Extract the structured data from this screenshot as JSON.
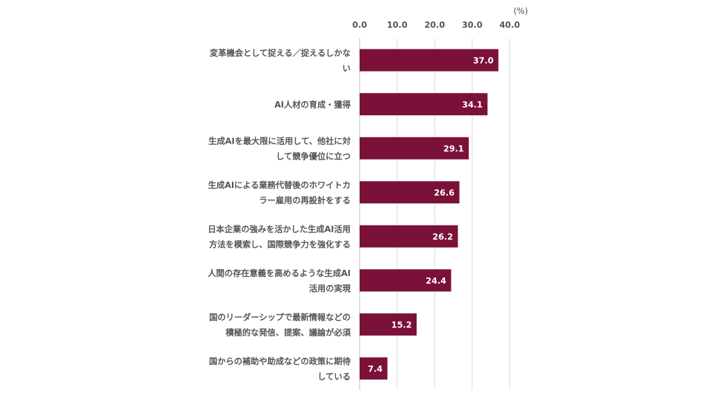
{
  "chart_data": {
    "type": "bar",
    "orientation": "horizontal",
    "unit_label": "(%)",
    "xlim": [
      0,
      40
    ],
    "tick_labels": [
      "0.0",
      "10.0",
      "20.0",
      "30.0",
      "40.0"
    ],
    "grid": true,
    "bar_color": "#7b1038",
    "categories": [
      [
        "変革機会として捉える／捉えるしかな",
        "い"
      ],
      [
        "AI人材の育成・獲得"
      ],
      [
        "生成AIを最大限に活用して、他社に対",
        "して競争優位に立つ"
      ],
      [
        "生成AIによる業務代替後のホワイトカ",
        "ラー雇用の再設計をする"
      ],
      [
        "日本企業の強みを活かした生成AI活用",
        "方法を模索し、国際競争力を強化する"
      ],
      [
        "人間の存在意義を高めるような生成AI",
        "活用の実現"
      ],
      [
        "国のリーダーシップで最新情報などの",
        "積極的な発信、提案、議論が必須"
      ],
      [
        "国からの補助や助成などの政策に期待",
        "している"
      ]
    ],
    "values": [
      37.0,
      34.1,
      29.1,
      26.6,
      26.2,
      24.4,
      15.2,
      7.4
    ],
    "value_labels": [
      "37.0",
      "34.1",
      "29.1",
      "26.6",
      "26.2",
      "24.4",
      "15.2",
      "7.4"
    ]
  }
}
